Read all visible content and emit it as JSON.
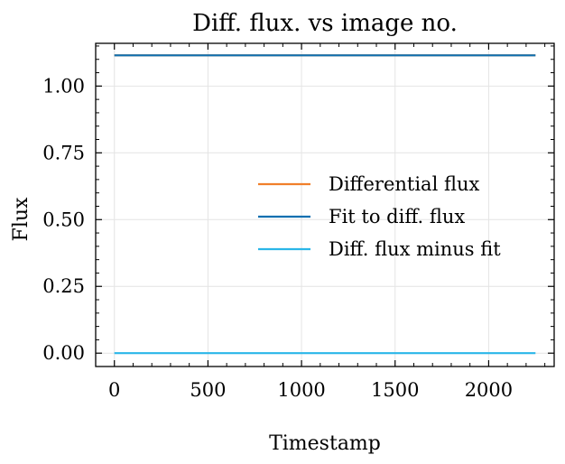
{
  "chart_data": {
    "type": "line",
    "title": "Diff. flux. vs image no.",
    "xlabel": "Timestamp",
    "ylabel": "Flux",
    "xlim": [
      -100,
      2350
    ],
    "ylim": [
      -0.05,
      1.16
    ],
    "xticks": [
      0,
      500,
      1000,
      1500,
      2000
    ],
    "xtick_labels": [
      "0",
      "500",
      "1000",
      "1500",
      "2000"
    ],
    "yticks": [
      0.0,
      0.25,
      0.5,
      0.75,
      1.0
    ],
    "ytick_labels": [
      "0.00",
      "0.25",
      "0.50",
      "0.75",
      "1.00"
    ],
    "grid": true,
    "legend_position": "center-right",
    "series": [
      {
        "name": "Differential flux",
        "color": "#f07f2b",
        "x": [
          0,
          2250
        ],
        "y": [
          1.115,
          1.115
        ]
      },
      {
        "name": "Fit to diff. flux",
        "color": "#0c6fb0",
        "x": [
          0,
          2250
        ],
        "y": [
          1.115,
          1.115
        ]
      },
      {
        "name": "Diff. flux minus fit",
        "color": "#2ab6e8",
        "x": [
          0,
          2250
        ],
        "y": [
          0.0,
          0.0
        ]
      }
    ]
  }
}
